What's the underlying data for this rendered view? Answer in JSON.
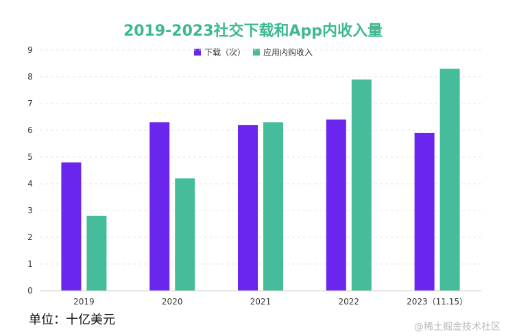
{
  "chart_data": {
    "type": "bar",
    "title": "2019-2023社交下载和App内收入量",
    "categories": [
      "2019",
      "2020",
      "2021",
      "2022",
      "2023（11.15）"
    ],
    "series": [
      {
        "name": "下载（次）",
        "values": [
          4.8,
          6.3,
          6.2,
          6.4,
          5.9
        ]
      },
      {
        "name": "应用内购收入",
        "values": [
          2.8,
          4.2,
          6.3,
          7.9,
          8.3
        ]
      }
    ],
    "ylim": [
      0,
      9
    ],
    "yticks": [
      "0",
      "1",
      "2",
      "3",
      "4",
      "5",
      "6",
      "7",
      "8",
      "9"
    ],
    "legend_position": "top-center",
    "grid": true
  },
  "colors": {
    "title": "#3DB890",
    "series": [
      "#6A25EE",
      "#45BC9A"
    ],
    "grid": "#e6e6e6",
    "axis": "#cccccc"
  },
  "unit_note": "单位：十亿美元",
  "watermark": "@稀土掘金技术社区"
}
